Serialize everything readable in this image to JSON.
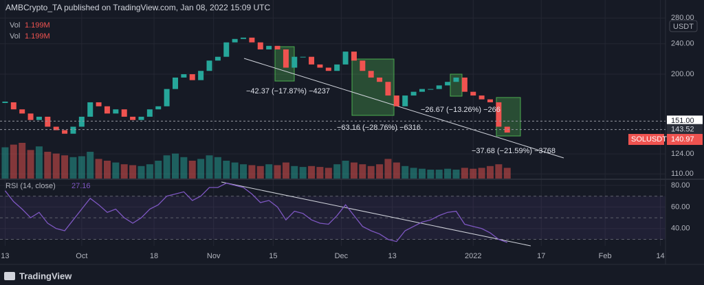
{
  "chart_data": {
    "type": "candlestick",
    "title": "AMBCrypto_TA published on TradingView.com, Jan 08, 2022 15:09 UTC",
    "currency": "USDT",
    "symbol": "SOLUSDT",
    "closes": [
      169,
      162,
      158,
      152,
      155,
      146,
      143,
      140,
      146,
      155,
      169,
      165,
      158,
      162,
      155,
      152,
      155,
      162,
      165,
      183,
      196,
      200,
      193,
      204,
      217,
      222,
      242,
      247,
      249,
      242,
      232,
      237,
      232,
      208,
      222,
      222,
      212,
      208,
      204,
      212,
      229,
      217,
      204,
      196,
      191,
      176,
      165,
      176,
      180,
      183,
      183,
      187,
      191,
      196,
      180,
      176,
      172,
      169,
      146,
      140.97
    ],
    "up_color": "#26a69a",
    "down_color": "#ef5350",
    "log_scale": true,
    "grid": true,
    "ylim": [
      107,
      312
    ],
    "yticks": [
      {
        "value": 280,
        "label": "280.00"
      },
      {
        "value": 240,
        "label": "240.00"
      },
      {
        "value": 200,
        "label": "200.00"
      },
      {
        "value": 124,
        "label": "124.00"
      },
      {
        "value": 110,
        "label": "110.00"
      }
    ],
    "xlim": [
      -0.6,
      77.6
    ],
    "xticks": [
      {
        "value": 0,
        "label": "13"
      },
      {
        "value": 9,
        "label": "Oct"
      },
      {
        "value": 17.5,
        "label": "18"
      },
      {
        "value": 24.5,
        "label": "Nov"
      },
      {
        "value": 31.5,
        "label": "15"
      },
      {
        "value": 39.5,
        "label": "Dec"
      },
      {
        "value": 45.5,
        "label": "13"
      },
      {
        "value": 55,
        "label": "2022"
      },
      {
        "value": 63,
        "label": "17"
      },
      {
        "value": 70.5,
        "label": "Feb"
      },
      {
        "value": 77,
        "label": "14"
      }
    ],
    "price_levels": [
      {
        "value": 151,
        "label": "151.00"
      },
      {
        "value": 143.52,
        "label": "143.52"
      }
    ],
    "volume": {
      "name": "Vol",
      "value_label": "1.199M",
      "vlim": [
        0,
        20
      ],
      "values": [
        3.5,
        3.8,
        4.0,
        3.2,
        3.6,
        3.0,
        2.8,
        2.6,
        2.4,
        2.5,
        3.0,
        2.2,
        2.0,
        1.8,
        1.6,
        1.5,
        1.4,
        1.6,
        2.0,
        2.6,
        2.8,
        2.4,
        2.0,
        2.2,
        2.6,
        2.4,
        2.0,
        1.8,
        1.6,
        1.5,
        1.4,
        1.6,
        1.5,
        1.8,
        1.4,
        1.3,
        1.4,
        1.3,
        1.2,
        1.6,
        2.0,
        1.8,
        1.6,
        1.4,
        1.6,
        2.2,
        1.8,
        1.4,
        1.2,
        1.1,
        1.0,
        1.0,
        1.1,
        1.0,
        1.2,
        1.1,
        1.2,
        1.4,
        1.6,
        1.199
      ],
      "up_color": "rgba(38,166,154,0.5)",
      "down_color": "rgba(239,83,80,0.5)"
    },
    "annotations": [
      "−42.37 (−17.87%) −4237",
      "−63.16 (−28.76%) −6316",
      "−26.67 (−13.26%) −266",
      "−37.68 (−21.59%) −3768"
    ],
    "rsi": {
      "name": "RSI (14, close)",
      "color": "#7e57c2",
      "ylim": [
        24,
        85
      ],
      "yticks": [
        {
          "value": 80,
          "label": "80.00"
        },
        {
          "value": 60,
          "label": "60.00"
        },
        {
          "value": 40,
          "label": "40.00"
        }
      ],
      "levels": [
        70,
        50,
        30
      ],
      "values": [
        75,
        65,
        58,
        50,
        55,
        45,
        40,
        38,
        48,
        58,
        68,
        62,
        55,
        58,
        50,
        45,
        50,
        58,
        62,
        70,
        72,
        74,
        66,
        70,
        78,
        78,
        82,
        80,
        78,
        72,
        64,
        66,
        60,
        48,
        56,
        54,
        48,
        45,
        44,
        52,
        62,
        52,
        42,
        38,
        35,
        30,
        28,
        38,
        42,
        46,
        48,
        52,
        55,
        56,
        44,
        42,
        40,
        36,
        30,
        27.16
      ]
    },
    "footer": "TradingView"
  }
}
